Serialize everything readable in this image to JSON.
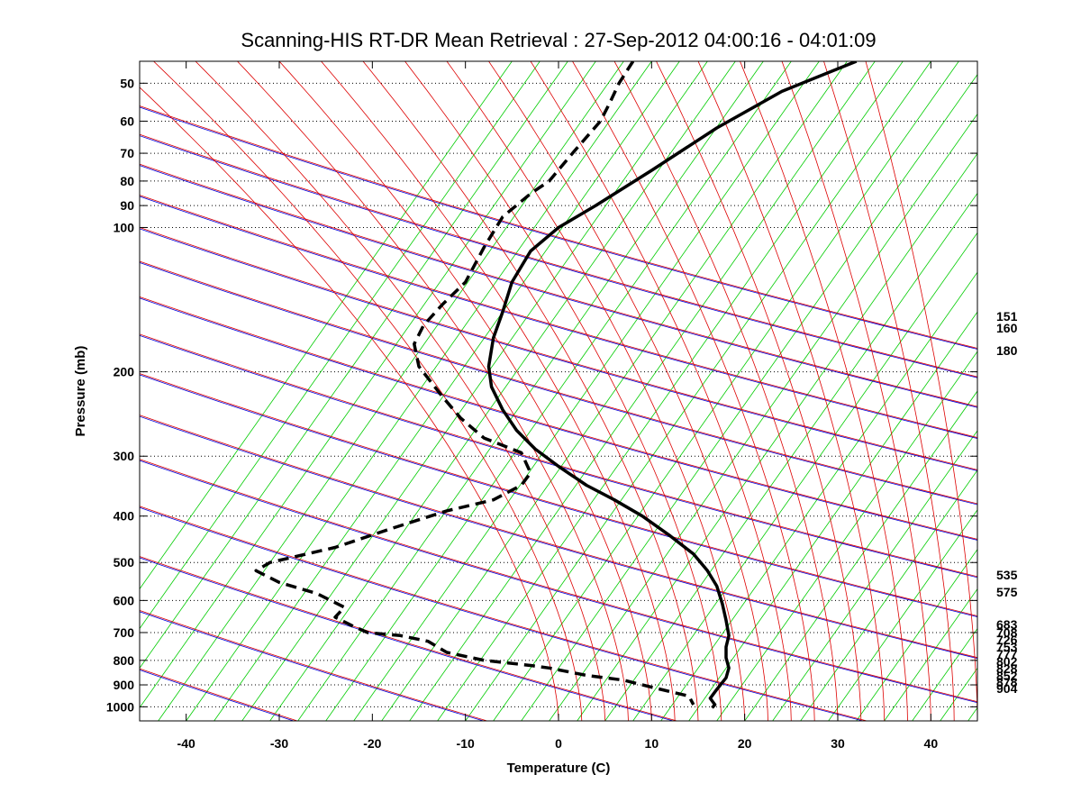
{
  "chart_data": {
    "type": "line",
    "title": "Scanning-HIS RT-DR Mean Retrieval : 27-Sep-2012 04:00:16 - 04:01:09",
    "xlabel": "Temperature (C)",
    "ylabel": "Pressure (mb)",
    "xlim": [
      -45,
      45
    ],
    "ylim": [
      1070,
      45
    ],
    "y_scale": "log",
    "x_ticks": [
      -40,
      -30,
      -20,
      -10,
      0,
      10,
      20,
      30,
      40
    ],
    "y_ticks": [
      50,
      60,
      70,
      80,
      90,
      100,
      200,
      300,
      400,
      500,
      600,
      700,
      800,
      900,
      1000
    ],
    "right_labels": [
      "151",
      "160",
      "180",
      "535",
      "575",
      "683",
      "708",
      "726",
      "753",
      "777",
      "802",
      "828",
      "852",
      "878",
      "904"
    ],
    "grid": "dotted horizontal at pressure ticks",
    "background_lines": {
      "dry_adiabats_color": "#0000dd",
      "moist_adiabats_color": "#dd0000",
      "mixing_ratio_color": "#00cc00"
    },
    "series": [
      {
        "style": "solid",
        "color": "#000000",
        "points": [
          [
            32,
            45
          ],
          [
            24,
            52
          ],
          [
            17,
            62
          ],
          [
            10,
            76
          ],
          [
            4,
            90
          ],
          [
            0,
            100
          ],
          [
            -3,
            112
          ],
          [
            -5,
            130
          ],
          [
            -6,
            150
          ],
          [
            -7,
            170
          ],
          [
            -7.5,
            195
          ],
          [
            -7.2,
            215
          ],
          [
            -6,
            240
          ],
          [
            -4.5,
            265
          ],
          [
            -2.5,
            290
          ],
          [
            0,
            315
          ],
          [
            3,
            345
          ],
          [
            6,
            370
          ],
          [
            9,
            400
          ],
          [
            12,
            440
          ],
          [
            14.5,
            480
          ],
          [
            16,
            520
          ],
          [
            17,
            560
          ],
          [
            17.6,
            610
          ],
          [
            18,
            660
          ],
          [
            18.3,
            710
          ],
          [
            18,
            750
          ],
          [
            18,
            790
          ],
          [
            18.3,
            830
          ],
          [
            18,
            870
          ],
          [
            17,
            920
          ],
          [
            16.3,
            960
          ],
          [
            16.8,
            990
          ],
          [
            16.5,
            1005
          ]
        ]
      },
      {
        "style": "dashed",
        "color": "#000000",
        "points": [
          [
            8,
            45
          ],
          [
            6.5,
            50
          ],
          [
            5.5,
            55
          ],
          [
            4.5,
            60
          ],
          [
            1.5,
            70
          ],
          [
            -1,
            80
          ],
          [
            -3,
            85
          ],
          [
            -6,
            95
          ],
          [
            -8,
            110
          ],
          [
            -10,
            130
          ],
          [
            -12.5,
            145
          ],
          [
            -14.5,
            160
          ],
          [
            -15.5,
            175
          ],
          [
            -15,
            195
          ],
          [
            -12.5,
            225
          ],
          [
            -10.5,
            250
          ],
          [
            -8,
            275
          ],
          [
            -4,
            295
          ],
          [
            -3,
            325
          ],
          [
            -4,
            345
          ],
          [
            -7,
            370
          ],
          [
            -12,
            390
          ],
          [
            -18,
            425
          ],
          [
            -24,
            465
          ],
          [
            -31,
            500
          ],
          [
            -32.5,
            520
          ],
          [
            -30,
            550
          ],
          [
            -26,
            580
          ],
          [
            -23,
            620
          ],
          [
            -24,
            650
          ],
          [
            -22,
            680
          ],
          [
            -20.5,
            700
          ],
          [
            -17,
            710
          ],
          [
            -14,
            730
          ],
          [
            -12,
            770
          ],
          [
            -8,
            800
          ],
          [
            -3,
            820
          ],
          [
            -1,
            830
          ],
          [
            3,
            860
          ],
          [
            7,
            880
          ],
          [
            10,
            910
          ],
          [
            14,
            950
          ],
          [
            14.5,
            990
          ]
        ]
      }
    ]
  }
}
